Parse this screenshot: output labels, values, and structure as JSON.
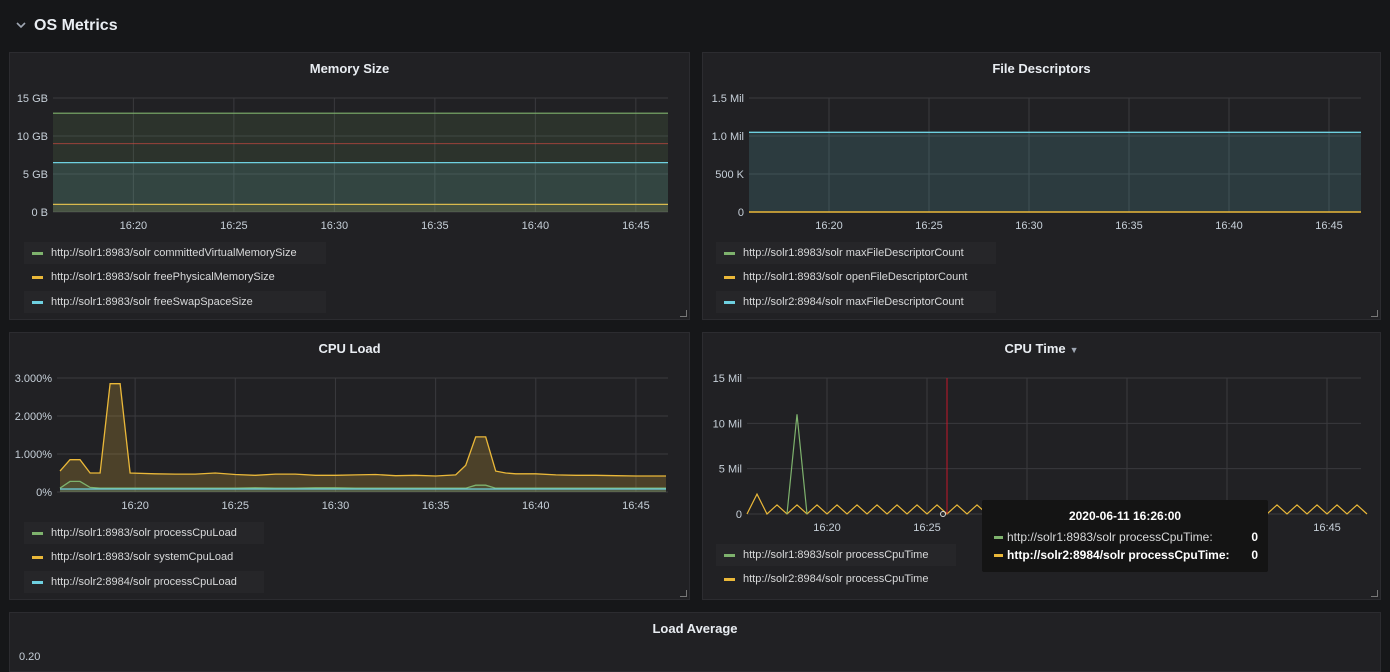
{
  "row": {
    "title": "OS Metrics",
    "collapse_icon": "chevron-down-icon"
  },
  "time_ticks": [
    "16:20",
    "16:25",
    "16:30",
    "16:35",
    "16:40",
    "16:45"
  ],
  "panels": {
    "memory": {
      "title": "Memory Size",
      "yticks": [
        "15 GB",
        "10 GB",
        "5 GB",
        "0 B"
      ],
      "legend": [
        {
          "label": "http://solr1:8983/solr committedVirtualMemorySize",
          "color": "#7eb26d"
        },
        {
          "label": "http://solr1:8983/solr freePhysicalMemorySize",
          "color": "#eab839"
        },
        {
          "label": "http://solr1:8983/solr freeSwapSpaceSize",
          "color": "#6ed0e0"
        }
      ]
    },
    "fd": {
      "title": "File Descriptors",
      "yticks": [
        "1.5 Mil",
        "1.0 Mil",
        "500 K",
        "0"
      ],
      "legend": [
        {
          "label": "http://solr1:8983/solr maxFileDescriptorCount",
          "color": "#7eb26d"
        },
        {
          "label": "http://solr1:8983/solr openFileDescriptorCount",
          "color": "#eab839"
        },
        {
          "label": "http://solr2:8984/solr maxFileDescriptorCount",
          "color": "#6ed0e0"
        }
      ]
    },
    "cpuload": {
      "title": "CPU Load",
      "yticks": [
        "3.000%",
        "2.000%",
        "1.000%",
        "0%"
      ],
      "legend": [
        {
          "label": "http://solr1:8983/solr processCpuLoad",
          "color": "#7eb26d"
        },
        {
          "label": "http://solr1:8983/solr systemCpuLoad",
          "color": "#eab839"
        },
        {
          "label": "http://solr2:8984/solr processCpuLoad",
          "color": "#6ed0e0"
        }
      ]
    },
    "cputime": {
      "title": "CPU Time",
      "yticks": [
        "15 Mil",
        "10 Mil",
        "5 Mil",
        "0"
      ],
      "legend": [
        {
          "label": "http://solr1:8983/solr processCpuTime",
          "color": "#7eb26d"
        },
        {
          "label": "http://solr2:8984/solr processCpuTime",
          "color": "#eab839"
        }
      ],
      "tooltip": {
        "time": "2020-06-11 16:26:00",
        "rows": [
          {
            "label": "http://solr1:8983/solr processCpuTime:",
            "value": "0",
            "color": "#7eb26d"
          },
          {
            "label": "http://solr2:8984/solr processCpuTime:",
            "value": "0",
            "color": "#eab839"
          }
        ]
      }
    },
    "loadavg": {
      "title": "Load Average",
      "ytick_partial": "0.20"
    }
  },
  "chart_data": [
    {
      "type": "area",
      "title": "Memory Size",
      "x": [
        "16:20",
        "16:25",
        "16:30",
        "16:35",
        "16:40",
        "16:45"
      ],
      "ylim": [
        0,
        15
      ],
      "unit": "GB",
      "series": [
        {
          "name": "http://solr1:8983/solr committedVirtualMemorySize",
          "values": [
            13,
            13,
            13,
            13,
            13,
            13
          ]
        },
        {
          "name": "http://solr1:8983/solr freePhysicalMemorySize",
          "values": [
            1,
            1,
            1,
            1,
            1,
            1
          ]
        },
        {
          "name": "http://solr1:8983/solr freeSwapSpaceSize",
          "values": [
            6.5,
            6.5,
            6.5,
            6.5,
            6.5,
            6.5
          ]
        }
      ]
    },
    {
      "type": "area",
      "title": "File Descriptors",
      "x": [
        "16:20",
        "16:25",
        "16:30",
        "16:35",
        "16:40",
        "16:45"
      ],
      "ylim": [
        0,
        1500000
      ],
      "series": [
        {
          "name": "http://solr1:8983/solr maxFileDescriptorCount",
          "values": [
            1048576,
            1048576,
            1048576,
            1048576,
            1048576,
            1048576
          ]
        },
        {
          "name": "http://solr1:8983/solr openFileDescriptorCount",
          "values": [
            0,
            0,
            0,
            0,
            0,
            0
          ]
        },
        {
          "name": "http://solr2:8984/solr maxFileDescriptorCount",
          "values": [
            1048576,
            1048576,
            1048576,
            1048576,
            1048576,
            1048576
          ]
        }
      ]
    },
    {
      "type": "area",
      "title": "CPU Load",
      "ylim": [
        0,
        3
      ],
      "unit": "%",
      "x_minutes": [
        16.25,
        16.75,
        17.25,
        17.75,
        18.25,
        18.75,
        19.25,
        19.75,
        21,
        22,
        23,
        24,
        25,
        26,
        27,
        28,
        29,
        30,
        31,
        32,
        33,
        34,
        35,
        36,
        36.5,
        37,
        37.5,
        38,
        38.5,
        39,
        40,
        41,
        42,
        43,
        44,
        45,
        46.5
      ],
      "series": [
        {
          "name": "http://solr1:8983/solr systemCpuLoad",
          "values": [
            0.55,
            0.85,
            0.85,
            0.5,
            0.5,
            2.85,
            2.85,
            0.5,
            0.48,
            0.47,
            0.47,
            0.5,
            0.46,
            0.44,
            0.47,
            0.47,
            0.44,
            0.44,
            0.45,
            0.46,
            0.43,
            0.44,
            0.42,
            0.45,
            0.7,
            1.45,
            1.45,
            0.55,
            0.5,
            0.48,
            0.48,
            0.45,
            0.44,
            0.44,
            0.43,
            0.42,
            0.42
          ]
        },
        {
          "name": "http://solr1:8983/solr processCpuLoad",
          "values": [
            0.1,
            0.28,
            0.28,
            0.12,
            0.1,
            0.1,
            0.1,
            0.1,
            0.1,
            0.1,
            0.1,
            0.1,
            0.1,
            0.11,
            0.1,
            0.1,
            0.11,
            0.11,
            0.1,
            0.1,
            0.1,
            0.1,
            0.1,
            0.1,
            0.1,
            0.18,
            0.18,
            0.1,
            0.1,
            0.1,
            0.1,
            0.1,
            0.1,
            0.1,
            0.1,
            0.1,
            0.1
          ]
        },
        {
          "name": "http://solr2:8984/solr processCpuLoad",
          "values": [
            0.08,
            0.08,
            0.08,
            0.08,
            0.08,
            0.08,
            0.08,
            0.08,
            0.08,
            0.08,
            0.08,
            0.08,
            0.08,
            0.08,
            0.08,
            0.08,
            0.08,
            0.08,
            0.08,
            0.08,
            0.08,
            0.08,
            0.08,
            0.08,
            0.08,
            0.08,
            0.08,
            0.08,
            0.08,
            0.08,
            0.08,
            0.08,
            0.08,
            0.08,
            0.08,
            0.08,
            0.08
          ]
        }
      ]
    },
    {
      "type": "line",
      "title": "CPU Time",
      "ylim": [
        0,
        15000000
      ],
      "x_minutes_start": 16,
      "x_minutes_step": 0.5,
      "x_minutes_end": 47,
      "series": [
        {
          "name": "http://solr1:8983/solr processCpuTime",
          "spike_at_minute": 18.5,
          "spike_value": 11000000
        },
        {
          "name": "http://solr2:8984/solr processCpuTime",
          "sawtooth_peak": 1000000,
          "first_peak": 2200000
        }
      ]
    }
  ]
}
